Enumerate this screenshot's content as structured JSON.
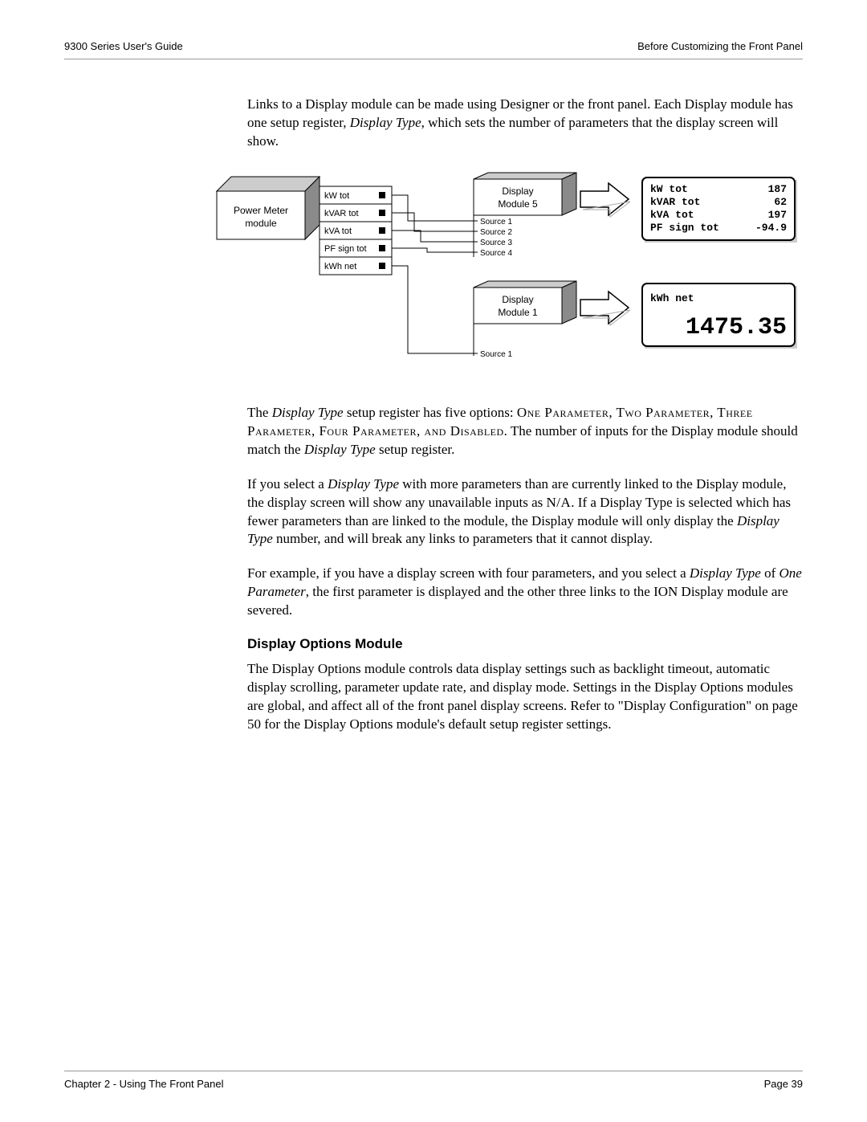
{
  "header": {
    "left": "9300 Series User's Guide",
    "right": "Before Customizing the Front Panel"
  },
  "footer": {
    "left": "Chapter 2 - Using The Front Panel",
    "right": "Page 39"
  },
  "paragraphs": {
    "p1_a": "Links to a Display module can be made using Designer or the front panel. Each Display module has one setup register, ",
    "p1_i": "Display Type",
    "p1_b": ", which sets the number of parameters that the display screen will show.",
    "p2_a": "The ",
    "p2_i1": "Display Type",
    "p2_b": " setup register has five options: ",
    "p2_sc1": "One Parameter, Two Parameter, Three Parameter, Four Parameter, and Disabled",
    "p2_c": ". The number of inputs for the Display module should match the ",
    "p2_i2": "Display Type",
    "p2_d": " setup register.",
    "p3_a": "If you select a ",
    "p3_i1": "Display Type",
    "p3_b": " with more parameters than are currently linked to the Display module, the display screen will show any unavailable inputs as ",
    "p3_sc": "N/A",
    "p3_c": ". If a Display Type is selected which has fewer parameters than are linked to the module, the Display module will only display the ",
    "p3_i2": "Display Type",
    "p3_d": " number, and will break any links to parameters that it cannot display.",
    "p4_a": "For example, if you have a display screen with four parameters, and you select a ",
    "p4_i1": "Display Type",
    "p4_b": " of ",
    "p4_i2": "One Parameter",
    "p4_c": ", the first parameter is displayed and the other three links to the ION Display module are severed.",
    "h1": "Display Options Module",
    "p5": "The Display Options module controls data display settings such as backlight timeout, automatic display scrolling, parameter update rate, and display mode. Settings in the Display Options modules are global, and affect all of the front panel display screens. Refer to \"Display Configuration\" on page 50 for the Display Options module's default setup register settings."
  },
  "diagram": {
    "pm_label_l1": "Power Meter",
    "pm_label_l2": "module",
    "outputs": [
      "kW tot",
      "kVAR tot",
      "kVA tot",
      "PF sign tot",
      "kWh net"
    ],
    "dm5_l1": "Display",
    "dm5_l2": "Module 5",
    "dm5_sources": [
      "Source 1",
      "Source 2",
      "Source 3",
      "Source 4"
    ],
    "dm1_l1": "Display",
    "dm1_l2": "Module 1",
    "dm1_sources": [
      "Source 1"
    ],
    "lcd1_labels": [
      "kW tot",
      "kVAR tot",
      "kVA tot",
      "PF sign tot"
    ],
    "lcd1_values": [
      "187",
      "62",
      "197",
      "-94.9"
    ],
    "lcd2_label": "kWh net",
    "lcd2_value": "1475.35",
    "colors": {
      "cube_light": "#ffffff",
      "cube_mid": "#cccccc",
      "cube_dark": "#8a8a8a",
      "stroke": "#000000",
      "lcd_bg": "#ffffff"
    },
    "font_sizes": {
      "box_label": 12,
      "output_label": 11,
      "source_label": 10,
      "lcd_small": 13,
      "lcd_big": 30
    }
  }
}
